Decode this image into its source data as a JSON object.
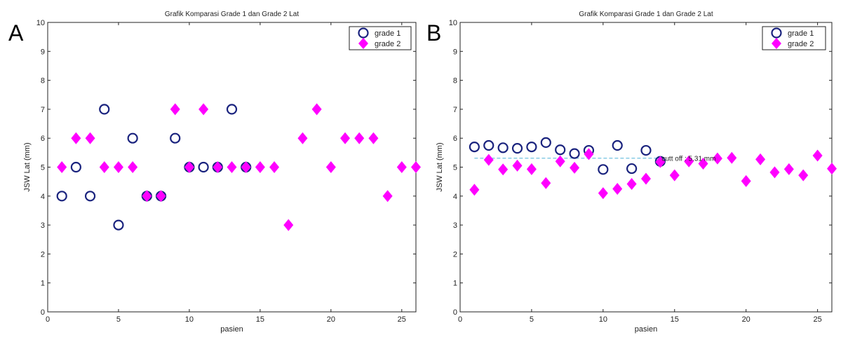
{
  "chart_data": [
    {
      "type": "scatter",
      "panel_label": "A",
      "title": "Grafik Komparasi Grade 1 dan Grade 2 Lat",
      "xlabel": "pasien",
      "ylabel": "JSW Lat (mm)",
      "xlim": [
        0,
        26
      ],
      "ylim": [
        0,
        10
      ],
      "xticks": [
        "0",
        "5",
        "10",
        "15",
        "20",
        "25"
      ],
      "yticks": [
        "0",
        "1",
        "2",
        "3",
        "4",
        "5",
        "6",
        "7",
        "8",
        "9",
        "10"
      ],
      "legend_position": "top-right",
      "series": [
        {
          "name": "grade 1",
          "marker": "circle",
          "color": "#1a237e",
          "points": [
            [
              1,
              4
            ],
            [
              2,
              5
            ],
            [
              3,
              4
            ],
            [
              4,
              7
            ],
            [
              5,
              3
            ],
            [
              6,
              6
            ],
            [
              7,
              4
            ],
            [
              8,
              4
            ],
            [
              9,
              6
            ],
            [
              10,
              5
            ],
            [
              11,
              5
            ],
            [
              12,
              5
            ],
            [
              13,
              7
            ],
            [
              14,
              5
            ]
          ]
        },
        {
          "name": "grade 2",
          "marker": "diamond",
          "color": "#ff00ff",
          "points": [
            [
              1,
              5
            ],
            [
              2,
              6
            ],
            [
              3,
              6
            ],
            [
              4,
              5
            ],
            [
              5,
              5
            ],
            [
              6,
              5
            ],
            [
              7,
              4
            ],
            [
              8,
              4
            ],
            [
              9,
              7
            ],
            [
              10,
              5
            ],
            [
              11,
              7
            ],
            [
              12,
              5
            ],
            [
              13,
              5
            ],
            [
              14,
              5
            ],
            [
              15,
              5
            ],
            [
              16,
              5
            ],
            [
              17,
              3
            ],
            [
              18,
              6
            ],
            [
              19,
              7
            ],
            [
              20,
              5
            ],
            [
              21,
              6
            ],
            [
              22,
              6
            ],
            [
              23,
              6
            ],
            [
              24,
              4
            ],
            [
              25,
              5
            ],
            [
              26,
              5
            ]
          ]
        }
      ]
    },
    {
      "type": "scatter",
      "panel_label": "B",
      "title": "Grafik Komparasi Grade 1 dan Grade 2 Lat",
      "xlabel": "pasien",
      "ylabel": "JSW Lat (mm)",
      "xlim": [
        0,
        26
      ],
      "ylim": [
        0,
        10
      ],
      "xticks": [
        "0",
        "5",
        "10",
        "15",
        "20",
        "25"
      ],
      "yticks": [
        "0",
        "1",
        "2",
        "3",
        "4",
        "5",
        "6",
        "7",
        "8",
        "9",
        "10"
      ],
      "legend_position": "top-right",
      "cutoff": {
        "value": 5.31,
        "label": "cutt off : 5.31 mm",
        "color": "#7ec8e3",
        "x_range": [
          1,
          14
        ]
      },
      "series": [
        {
          "name": "grade 1",
          "marker": "circle",
          "color": "#1a237e",
          "points": [
            [
              1,
              5.7
            ],
            [
              2,
              5.75
            ],
            [
              3,
              5.67
            ],
            [
              4,
              5.65
            ],
            [
              5,
              5.7
            ],
            [
              6,
              5.85
            ],
            [
              7,
              5.6
            ],
            [
              8,
              5.47
            ],
            [
              9,
              5.58
            ],
            [
              10,
              4.92
            ],
            [
              11,
              5.75
            ],
            [
              12,
              4.95
            ],
            [
              13,
              5.58
            ],
            [
              14,
              5.2
            ]
          ]
        },
        {
          "name": "grade 2",
          "marker": "diamond",
          "color": "#ff00ff",
          "points": [
            [
              1,
              4.22
            ],
            [
              2,
              5.25
            ],
            [
              3,
              4.92
            ],
            [
              4,
              5.05
            ],
            [
              5,
              4.93
            ],
            [
              6,
              4.45
            ],
            [
              7,
              5.2
            ],
            [
              8,
              4.98
            ],
            [
              9,
              5.45
            ],
            [
              10,
              4.1
            ],
            [
              11,
              4.25
            ],
            [
              12,
              4.42
            ],
            [
              13,
              4.6
            ],
            [
              14,
              5.18
            ],
            [
              15,
              4.72
            ],
            [
              16,
              5.2
            ],
            [
              17,
              5.12
            ],
            [
              18,
              5.3
            ],
            [
              19,
              5.32
            ],
            [
              20,
              4.52
            ],
            [
              21,
              5.27
            ],
            [
              22,
              4.82
            ],
            [
              23,
              4.93
            ],
            [
              24,
              4.72
            ],
            [
              25,
              5.4
            ],
            [
              26,
              4.95
            ]
          ]
        }
      ]
    }
  ]
}
